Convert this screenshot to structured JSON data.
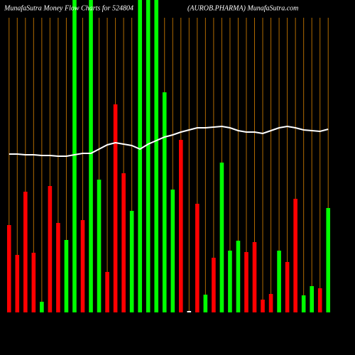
{
  "chart_data": {
    "type": "bar",
    "title": "MunafaSutra  Money Flow  Charts for 524804",
    "subtitle": "(AUROB.PHARMA) MunafaSutra.com",
    "ylim": [
      0,
      440
    ],
    "grid": true,
    "grid_color": "#b06a00",
    "background": "#000000",
    "series": [
      {
        "type": "bar",
        "colors": [
          "#ff0000",
          "#ff0000",
          "#ff0000",
          "#ff0000",
          "#00ff00",
          "#ff0000",
          "#ff0000",
          "#00ff00",
          "#00ff00",
          "#ff0000",
          "#00ff00",
          "#00ff00",
          "#ff0000",
          "#ff0000",
          "#ff0000",
          "#00ff00",
          "#00ff00",
          "#00ff00",
          "#00ff00",
          "#00ff00",
          "#00ff00",
          "#ff0000",
          "#ffffff",
          "#ff0000",
          "#00ff00",
          "#ff0000",
          "#00ff00",
          "#00ff00",
          "#00ff00",
          "#ff0000",
          "#ff0000",
          "#ff0000",
          "#ff0000",
          "#00ff00",
          "#ff0000",
          "#ff0000",
          "#00ff00",
          "#00ff00",
          "#ff0000",
          "#00ff00"
        ],
        "values": [
          123,
          81,
          170,
          84,
          15,
          178,
          126,
          102,
          440,
          130,
          440,
          187,
          57,
          293,
          196,
          143,
          440,
          440,
          440,
          310,
          173,
          243,
          2,
          153,
          25,
          77,
          211,
          87,
          101,
          85,
          99,
          18,
          26,
          87,
          71,
          160,
          24,
          37,
          34,
          147
        ]
      },
      {
        "type": "line",
        "color": "#ffffff",
        "values": [
          223,
          223,
          222,
          222,
          221,
          221,
          220,
          220,
          222,
          224,
          224,
          230,
          236,
          239,
          237,
          235,
          230,
          237,
          242,
          247,
          250,
          254,
          257,
          260,
          260,
          261,
          262,
          260,
          256,
          254,
          254,
          252,
          256,
          260,
          262,
          260,
          257,
          256,
          255,
          258
        ]
      }
    ]
  }
}
